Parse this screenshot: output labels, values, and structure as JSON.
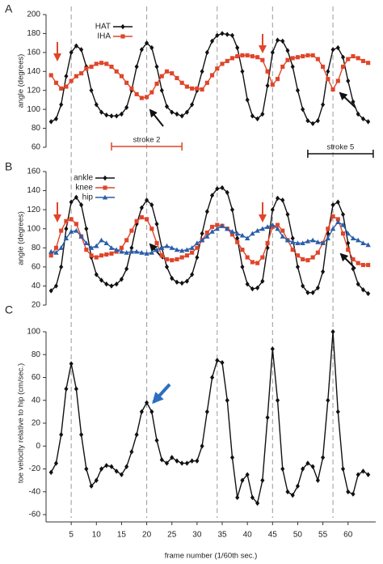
{
  "chart_data": [
    {
      "type": "line",
      "panel": "A",
      "ylabel": "angle (degrees)",
      "ylim": [
        60,
        200
      ],
      "yticks": [
        60,
        80,
        100,
        120,
        140,
        160,
        180,
        200
      ],
      "annotations": [
        "stroke 2",
        "stroke 5"
      ],
      "x": [
        1,
        2,
        3,
        4,
        5,
        6,
        7,
        8,
        9,
        10,
        11,
        12,
        13,
        14,
        15,
        16,
        17,
        18,
        19,
        20,
        21,
        22,
        23,
        24,
        25,
        26,
        27,
        28,
        29,
        30,
        31,
        32,
        33,
        34,
        35,
        36,
        37,
        38,
        39,
        40,
        41,
        42,
        43,
        44,
        45,
        46,
        47,
        48,
        49,
        50,
        51,
        52,
        53,
        54,
        55,
        56,
        57,
        58,
        59,
        60,
        61,
        62,
        63,
        64
      ],
      "series": [
        {
          "name": "HAT",
          "color": "#111111",
          "marker": "diamond",
          "values": [
            87,
            90,
            105,
            135,
            160,
            167,
            163,
            145,
            120,
            105,
            97,
            94,
            93,
            93,
            95,
            102,
            120,
            145,
            163,
            170,
            165,
            145,
            120,
            103,
            97,
            95,
            93,
            97,
            105,
            120,
            140,
            160,
            172,
            178,
            180,
            179,
            178,
            165,
            140,
            110,
            93,
            90,
            95,
            125,
            160,
            173,
            172,
            162,
            145,
            120,
            100,
            88,
            85,
            88,
            105,
            140,
            163,
            165,
            155,
            130,
            108,
            95,
            90,
            87
          ]
        },
        {
          "name": "IHA",
          "color": "#e0452a",
          "marker": "square",
          "values": [
            136,
            128,
            122,
            124,
            130,
            135,
            138,
            143,
            145,
            148,
            149,
            148,
            145,
            140,
            135,
            128,
            122,
            116,
            112,
            113,
            118,
            127,
            135,
            140,
            138,
            133,
            128,
            124,
            122,
            122,
            121,
            128,
            136,
            143,
            148,
            151,
            154,
            156,
            157,
            157,
            156,
            155,
            152,
            140,
            126,
            132,
            145,
            152,
            154,
            155,
            156,
            157,
            157,
            153,
            145,
            132,
            121,
            130,
            145,
            153,
            156,
            154,
            151,
            149
          ]
        }
      ]
    },
    {
      "type": "line",
      "panel": "B",
      "ylabel": "angle (degrees)",
      "ylim": [
        20,
        160
      ],
      "yticks": [
        20,
        40,
        60,
        80,
        100,
        120,
        140,
        160
      ],
      "x": [
        1,
        2,
        3,
        4,
        5,
        6,
        7,
        8,
        9,
        10,
        11,
        12,
        13,
        14,
        15,
        16,
        17,
        18,
        19,
        20,
        21,
        22,
        23,
        24,
        25,
        26,
        27,
        28,
        29,
        30,
        31,
        32,
        33,
        34,
        35,
        36,
        37,
        38,
        39,
        40,
        41,
        42,
        43,
        44,
        45,
        46,
        47,
        48,
        49,
        50,
        51,
        52,
        53,
        54,
        55,
        56,
        57,
        58,
        59,
        60,
        61,
        62,
        63,
        64
      ],
      "series": [
        {
          "name": "ankle",
          "color": "#111111",
          "marker": "diamond",
          "values": [
            35,
            40,
            60,
            100,
            128,
            133,
            125,
            100,
            70,
            52,
            46,
            42,
            40,
            42,
            47,
            58,
            80,
            105,
            122,
            130,
            125,
            105,
            80,
            60,
            48,
            44,
            43,
            45,
            52,
            70,
            95,
            118,
            135,
            142,
            143,
            138,
            120,
            90,
            60,
            42,
            37,
            38,
            45,
            80,
            120,
            132,
            130,
            115,
            90,
            60,
            40,
            33,
            33,
            38,
            55,
            95,
            125,
            128,
            115,
            85,
            58,
            42,
            36,
            32
          ]
        },
        {
          "name": "knee",
          "color": "#e0452a",
          "marker": "square",
          "values": [
            72,
            80,
            98,
            108,
            110,
            105,
            92,
            78,
            72,
            70,
            72,
            73,
            74,
            76,
            80,
            88,
            98,
            108,
            112,
            110,
            100,
            85,
            72,
            68,
            67,
            68,
            70,
            72,
            75,
            80,
            88,
            96,
            102,
            104,
            103,
            100,
            94,
            86,
            78,
            70,
            65,
            64,
            70,
            85,
            102,
            104,
            98,
            88,
            78,
            72,
            68,
            67,
            70,
            75,
            85,
            100,
            113,
            110,
            95,
            78,
            68,
            64,
            62,
            62
          ]
        },
        {
          "name": "hip",
          "color": "#2b5ea8",
          "marker": "triangle",
          "values": [
            76,
            75,
            80,
            90,
            97,
            98,
            92,
            85,
            80,
            82,
            88,
            85,
            80,
            78,
            76,
            75,
            76,
            76,
            75,
            74,
            75,
            78,
            80,
            82,
            80,
            78,
            77,
            78,
            80,
            85,
            88,
            92,
            97,
            100,
            103,
            100,
            97,
            95,
            93,
            90,
            95,
            98,
            100,
            102,
            104,
            100,
            92,
            88,
            86,
            85,
            85,
            87,
            88,
            86,
            85,
            90,
            100,
            107,
            104,
            95,
            90,
            88,
            85,
            83
          ]
        }
      ]
    },
    {
      "type": "line",
      "panel": "C",
      "ylabel": "toe velocity relative to hip (cm/sec.)",
      "ylim": [
        -60,
        100
      ],
      "yticks": [
        -60,
        -40,
        -20,
        0,
        20,
        40,
        60,
        80,
        100
      ],
      "xlabel": "frame number (1/60th sec.)",
      "xlim": [
        0,
        65.5
      ],
      "xticks": [
        5,
        10,
        15,
        20,
        25,
        30,
        35,
        40,
        45,
        50,
        55,
        60
      ],
      "vlines": [
        5,
        20,
        34,
        45,
        57
      ],
      "x": [
        1,
        2,
        3,
        4,
        5,
        6,
        7,
        8,
        9,
        10,
        11,
        12,
        13,
        14,
        15,
        16,
        17,
        18,
        19,
        20,
        21,
        22,
        23,
        24,
        25,
        26,
        27,
        28,
        29,
        30,
        31,
        32,
        33,
        34,
        35,
        36,
        37,
        38,
        39,
        40,
        41,
        42,
        43,
        44,
        45,
        46,
        47,
        48,
        49,
        50,
        51,
        52,
        53,
        54,
        55,
        56,
        57,
        58,
        59,
        60,
        61,
        62,
        63,
        64
      ],
      "series": [
        {
          "color": "#111111",
          "marker": "diamond",
          "values": [
            -23,
            -15,
            10,
            50,
            72,
            50,
            10,
            -20,
            -35,
            -30,
            -20,
            -17,
            -18,
            -22,
            -25,
            -18,
            -5,
            10,
            30,
            38,
            30,
            5,
            -12,
            -15,
            -10,
            -13,
            -15,
            -15,
            -13,
            -13,
            0,
            30,
            60,
            75,
            73,
            40,
            -10,
            -45,
            -30,
            -25,
            -45,
            -50,
            -30,
            25,
            85,
            40,
            -20,
            -40,
            -43,
            -35,
            -20,
            -15,
            -18,
            -30,
            -10,
            40,
            100,
            30,
            -20,
            -40,
            -42,
            -25,
            -22,
            -25
          ]
        }
      ]
    }
  ]
}
